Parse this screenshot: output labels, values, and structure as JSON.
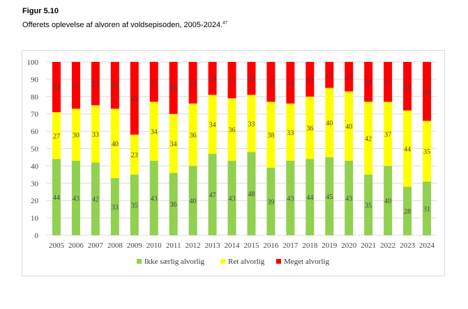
{
  "figure_label": "Figur 5.10",
  "figure_title": "Offerets oplevelse af alvoren af voldsepisoden, 2005-2024.",
  "figure_note_ref": "47",
  "colors": {
    "ikke": "#92d050",
    "ret": "#ffff00",
    "meget": "#ff0000",
    "grid": "#d9d9d9"
  },
  "chart_data": {
    "type": "bar",
    "stacked": true,
    "categories": [
      "2005",
      "2006",
      "2007",
      "2008",
      "2009",
      "2010",
      "2011",
      "2012",
      "2013",
      "2014",
      "2015",
      "2016",
      "2017",
      "2018",
      "2019",
      "2020",
      "2021",
      "2022",
      "2023",
      "2024"
    ],
    "series": [
      {
        "name": "Ikke særlig alvorlig",
        "color": "#92d050",
        "values": [
          44,
          43,
          42,
          33,
          35,
          43,
          36,
          40,
          47,
          43,
          48,
          39,
          43,
          44,
          45,
          43,
          35,
          40,
          28,
          31
        ]
      },
      {
        "name": "Ret alvorlig",
        "color": "#ffff00",
        "values": [
          27,
          30,
          33,
          40,
          23,
          34,
          34,
          36,
          34,
          36,
          33,
          38,
          33,
          36,
          40,
          40,
          42,
          37,
          44,
          35
        ]
      },
      {
        "name": "Meget alvorlig",
        "color": "#ff0000",
        "values": [
          30,
          27,
          25,
          27,
          42,
          23,
          30,
          24,
          19,
          21,
          19,
          23,
          24,
          20,
          15,
          17,
          24,
          23,
          28,
          34
        ]
      }
    ],
    "ylim": [
      0,
      100
    ],
    "yticks": [
      0,
      10,
      20,
      30,
      40,
      50,
      60,
      70,
      80,
      90,
      100
    ],
    "grid": true,
    "legend_position": "bottom"
  }
}
